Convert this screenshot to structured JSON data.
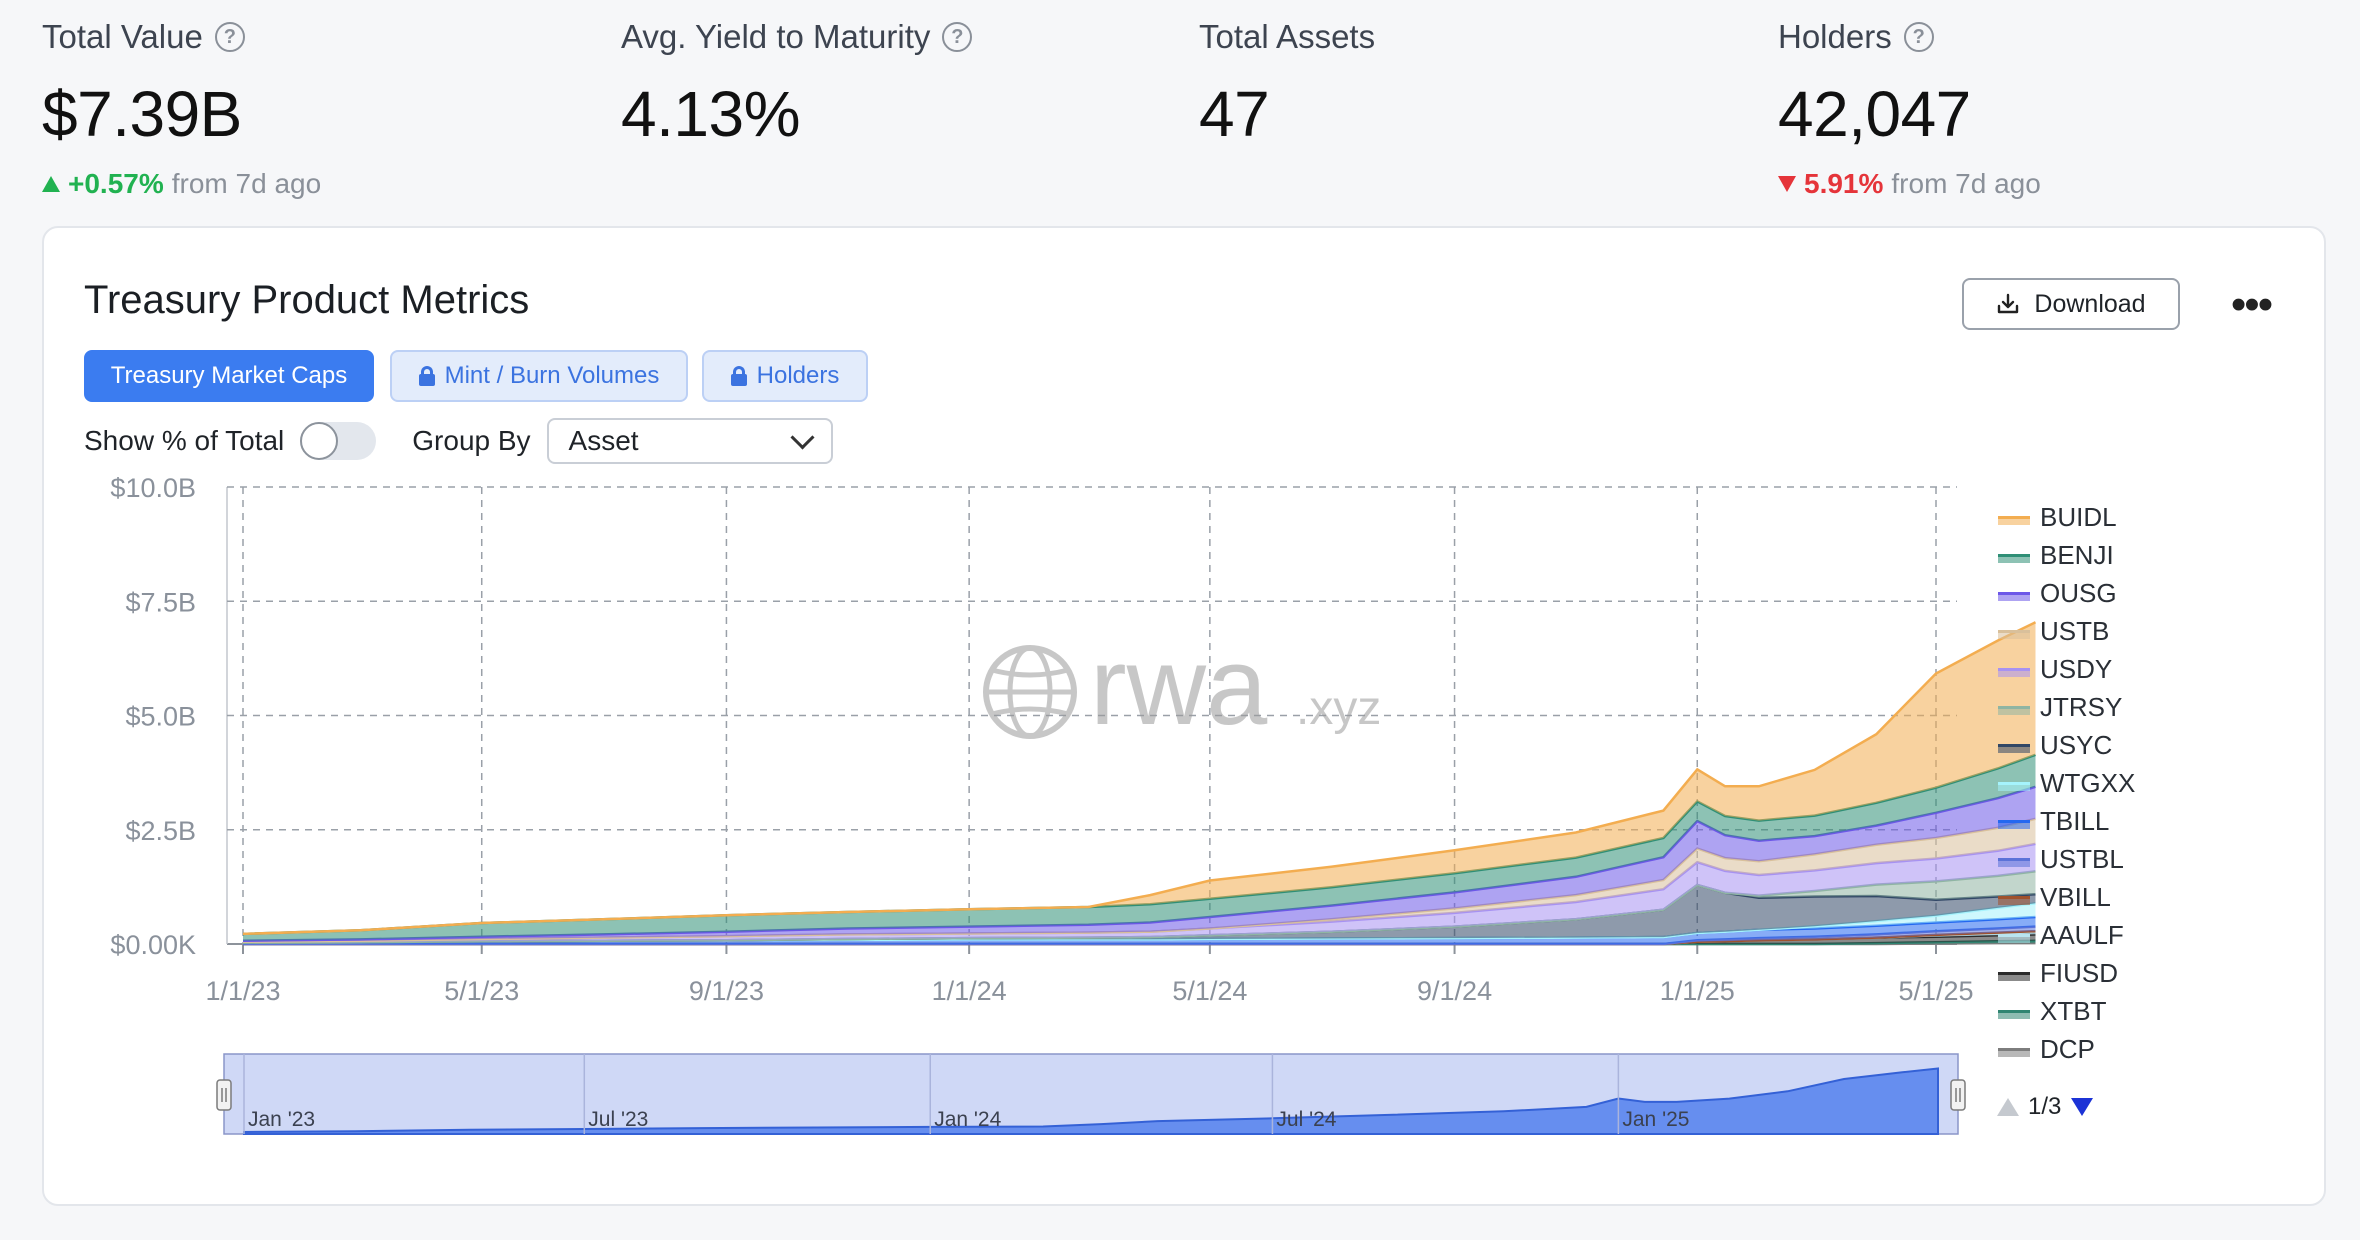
{
  "stats": [
    {
      "label": "Total Value",
      "value": "$7.39B",
      "has_help": true,
      "change": {
        "direction": "up",
        "pct": "+0.57%",
        "suffix": "from 7d ago"
      }
    },
    {
      "label": "Avg. Yield to Maturity",
      "value": "4.13%",
      "has_help": true
    },
    {
      "label": "Total Assets",
      "value": "47",
      "has_help": false
    },
    {
      "label": "Holders",
      "value": "42,047",
      "has_help": true,
      "change": {
        "direction": "down",
        "pct": "5.91%",
        "suffix": "from 7d ago"
      }
    }
  ],
  "card": {
    "title": "Treasury Product Metrics",
    "download_label": "Download",
    "more_label": "•••",
    "tabs": [
      {
        "label": "Treasury Market Caps",
        "active": true,
        "locked": false
      },
      {
        "label": "Mint / Burn Volumes",
        "active": false,
        "locked": true
      },
      {
        "label": "Holders",
        "active": false,
        "locked": true
      }
    ],
    "show_pct_label": "Show % of Total",
    "show_pct_enabled": false,
    "group_by_label": "Group By",
    "group_by_value": "Asset"
  },
  "watermark": {
    "main": "rwa",
    "suffix": ".xyz"
  },
  "legend": {
    "page": "1/3"
  },
  "navigator": {
    "labels": [
      "Jan '23",
      "Jul '23",
      "Jan '24",
      "Jul '24",
      "Jan '25"
    ]
  },
  "chart_data": {
    "type": "area",
    "stacked": true,
    "title": "",
    "xlabel": "",
    "ylabel": "",
    "ylim": [
      0,
      10000000000
    ],
    "y_ticks": [
      "$0.00K",
      "$2.5B",
      "$5.0B",
      "$7.5B",
      "$10.0B"
    ],
    "y_tick_values": [
      0,
      2500000000,
      5000000000,
      7500000000,
      10000000000
    ],
    "x_ticks": [
      "1/1/23",
      "5/1/23",
      "9/1/23",
      "1/1/24",
      "5/1/24",
      "9/1/24",
      "1/1/25",
      "5/1/25"
    ],
    "grid": true,
    "legend_position": "right",
    "x": [
      "1/1/23",
      "3/1/23",
      "5/1/23",
      "7/1/23",
      "9/1/23",
      "11/1/23",
      "1/1/24",
      "3/1/24",
      "4/1/24",
      "5/1/24",
      "7/1/24",
      "9/1/24",
      "11/1/24",
      "12/15/24",
      "1/1/25",
      "1/15/25",
      "2/1/25",
      "3/1/25",
      "4/1/25",
      "5/1/25",
      "6/1/25",
      "6/20/25"
    ],
    "series": [
      {
        "name": "DCP",
        "color": "#7d7d7d",
        "values": [
          0.0,
          0.0,
          0.0,
          0.0,
          0.0,
          0.0,
          0.0,
          0.0,
          0.0,
          0.0,
          0.0,
          0.0,
          0.0,
          0.0,
          0.0,
          0.0,
          0.0,
          0.0,
          0.0,
          0.01,
          0.02,
          0.02
        ]
      },
      {
        "name": "XTBT",
        "color": "#2f8572",
        "values": [
          0.0,
          0.0,
          0.0,
          0.0,
          0.0,
          0.0,
          0.0,
          0.0,
          0.0,
          0.0,
          0.0,
          0.0,
          0.0,
          0.0,
          0.0,
          0.0,
          0.0,
          0.0,
          0.02,
          0.03,
          0.04,
          0.05
        ]
      },
      {
        "name": "FIUSD",
        "color": "#2b2b2b",
        "values": [
          0.0,
          0.0,
          0.0,
          0.0,
          0.0,
          0.0,
          0.0,
          0.0,
          0.0,
          0.0,
          0.0,
          0.0,
          0.0,
          0.0,
          0.05,
          0.06,
          0.08,
          0.1,
          0.12,
          0.12,
          0.13,
          0.14
        ]
      },
      {
        "name": "AAULF",
        "color": "#b9e4f0",
        "values": [
          0.0,
          0.0,
          0.0,
          0.0,
          0.0,
          0.0,
          0.0,
          0.0,
          0.0,
          0.0,
          0.0,
          0.0,
          0.0,
          0.0,
          0.0,
          0.0,
          0.0,
          0.0,
          0.0,
          0.03,
          0.04,
          0.05
        ]
      },
      {
        "name": "VBILL",
        "color": "#a0522d",
        "values": [
          0.0,
          0.0,
          0.0,
          0.0,
          0.0,
          0.0,
          0.0,
          0.0,
          0.0,
          0.0,
          0.0,
          0.0,
          0.0,
          0.0,
          0.0,
          0.0,
          0.0,
          0.0,
          0.0,
          0.01,
          0.02,
          0.02
        ]
      },
      {
        "name": "USTBL",
        "color": "#5b72d8",
        "values": [
          0.0,
          0.0,
          0.0,
          0.0,
          0.0,
          0.0,
          0.0,
          0.0,
          0.0,
          0.0,
          0.0,
          0.0,
          0.0,
          0.0,
          0.03,
          0.04,
          0.05,
          0.06,
          0.07,
          0.08,
          0.09,
          0.1
        ]
      },
      {
        "name": "TBILL",
        "color": "#2468f0",
        "values": [
          0.03,
          0.04,
          0.06,
          0.07,
          0.08,
          0.09,
          0.1,
          0.1,
          0.1,
          0.11,
          0.12,
          0.13,
          0.14,
          0.15,
          0.16,
          0.17,
          0.18,
          0.18,
          0.19,
          0.19,
          0.2,
          0.21
        ]
      },
      {
        "name": "WTGXX",
        "color": "#a5f3fc",
        "values": [
          0.0,
          0.0,
          0.0,
          0.0,
          0.0,
          0.0,
          0.0,
          0.0,
          0.0,
          0.0,
          0.0,
          0.0,
          0.0,
          0.0,
          0.0,
          0.0,
          0.0,
          0.05,
          0.1,
          0.15,
          0.25,
          0.3
        ]
      },
      {
        "name": "USYC",
        "color": "#314766",
        "values": [
          0.0,
          0.0,
          0.0,
          0.0,
          0.0,
          0.02,
          0.03,
          0.04,
          0.05,
          0.08,
          0.15,
          0.25,
          0.4,
          0.6,
          1.05,
          0.85,
          0.7,
          0.65,
          0.55,
          0.35,
          0.25,
          0.2
        ]
      },
      {
        "name": "JTRSY",
        "color": "#8fb5a3",
        "values": [
          0.0,
          0.0,
          0.0,
          0.0,
          0.0,
          0.0,
          0.0,
          0.0,
          0.0,
          0.0,
          0.0,
          0.0,
          0.0,
          0.0,
          0.0,
          0.0,
          0.05,
          0.12,
          0.25,
          0.4,
          0.45,
          0.5
        ]
      },
      {
        "name": "USDY",
        "color": "#a792f2",
        "values": [
          0.02,
          0.03,
          0.05,
          0.07,
          0.09,
          0.1,
          0.1,
          0.11,
          0.12,
          0.15,
          0.22,
          0.3,
          0.38,
          0.45,
          0.5,
          0.48,
          0.45,
          0.45,
          0.47,
          0.5,
          0.55,
          0.6
        ]
      },
      {
        "name": "USTB",
        "color": "#d9c09b",
        "values": [
          0.0,
          0.0,
          0.0,
          0.0,
          0.0,
          0.0,
          0.0,
          0.0,
          0.0,
          0.0,
          0.05,
          0.1,
          0.15,
          0.2,
          0.3,
          0.28,
          0.3,
          0.35,
          0.4,
          0.45,
          0.5,
          0.55
        ]
      },
      {
        "name": "OUSG",
        "color": "#6c57e8",
        "values": [
          0.02,
          0.03,
          0.05,
          0.07,
          0.1,
          0.13,
          0.15,
          0.17,
          0.2,
          0.25,
          0.3,
          0.35,
          0.4,
          0.5,
          0.6,
          0.5,
          0.45,
          0.4,
          0.42,
          0.55,
          0.65,
          0.7
        ]
      },
      {
        "name": "BENJI",
        "color": "#2f8f76",
        "values": [
          0.15,
          0.2,
          0.3,
          0.33,
          0.36,
          0.36,
          0.38,
          0.39,
          0.4,
          0.4,
          0.4,
          0.42,
          0.42,
          0.42,
          0.43,
          0.42,
          0.44,
          0.45,
          0.5,
          0.55,
          0.65,
          0.7
        ]
      },
      {
        "name": "BUIDL",
        "color": "#f3ad50",
        "values": [
          0.0,
          0.0,
          0.0,
          0.0,
          0.0,
          0.0,
          0.0,
          0.0,
          0.2,
          0.4,
          0.45,
          0.5,
          0.55,
          0.6,
          0.7,
          0.65,
          0.75,
          1.0,
          1.5,
          2.5,
          2.8,
          2.9
        ]
      }
    ],
    "values_unit": "$B"
  }
}
